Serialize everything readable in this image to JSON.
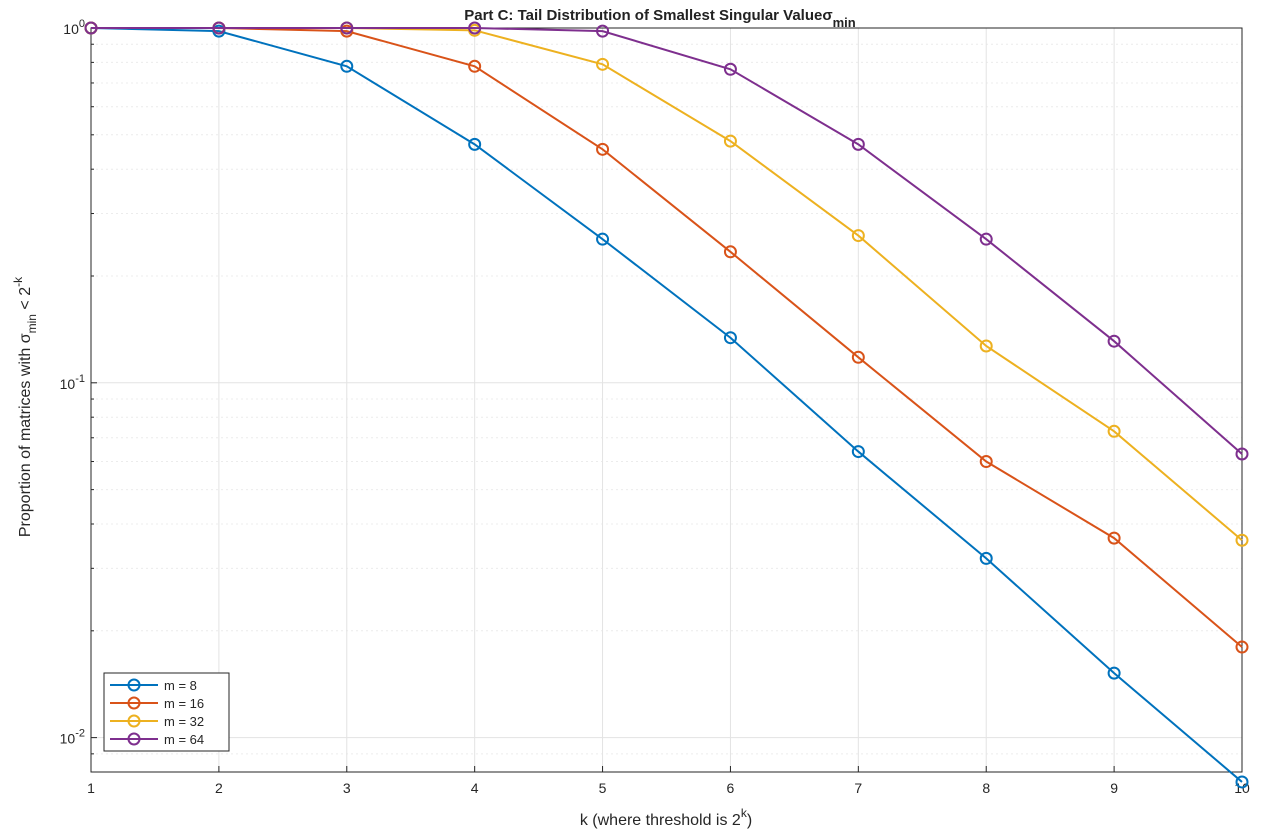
{
  "chart_data": {
    "type": "line",
    "title": "Part C: Tail Distribution of Smallest Singular Value",
    "title_symbol": "σ",
    "title_subscript": "min",
    "xlabel": "k (where threshold is 2",
    "xlabel_sup": "k",
    "xlabel_end": ")",
    "ylabel": "Proportion of matrices with ",
    "ylabel_symbol": "σ",
    "ylabel_subscript": "min",
    "ylabel_mid": " < 2",
    "ylabel_sup": "-k",
    "yscale": "log",
    "xlim": [
      1,
      10
    ],
    "ylim": [
      0.008,
      1.0
    ],
    "x": [
      1,
      2,
      3,
      4,
      5,
      6,
      7,
      8,
      9,
      10
    ],
    "x_ticks": [
      "1",
      "2",
      "3",
      "4",
      "5",
      "6",
      "7",
      "8",
      "9",
      "10"
    ],
    "y_ticks": [
      {
        "base": "10",
        "exp": "0",
        "value": 1
      },
      {
        "base": "10",
        "exp": "-1",
        "value": 0.1
      },
      {
        "base": "10",
        "exp": "-2",
        "value": 0.01
      }
    ],
    "grid": true,
    "legend_position": "bottom-left",
    "marker": "circle",
    "series": [
      {
        "name": "m = 8",
        "color": "#0072BD",
        "values": [
          1.0,
          0.98,
          0.78,
          0.47,
          0.254,
          0.134,
          0.064,
          0.032,
          0.0152,
          0.0075
        ]
      },
      {
        "name": "m = 16",
        "color": "#D95319",
        "values": [
          1.0,
          1.0,
          0.98,
          0.78,
          0.455,
          0.234,
          0.118,
          0.06,
          0.0365,
          0.018
        ]
      },
      {
        "name": "m = 32",
        "color": "#EDB120",
        "values": [
          1.0,
          1.0,
          1.0,
          0.985,
          0.79,
          0.48,
          0.26,
          0.127,
          0.073,
          0.036
        ]
      },
      {
        "name": "m = 64",
        "color": "#7E2F8E",
        "values": [
          1.0,
          1.0,
          1.0,
          1.0,
          0.98,
          0.765,
          0.47,
          0.254,
          0.131,
          0.063
        ]
      }
    ]
  }
}
